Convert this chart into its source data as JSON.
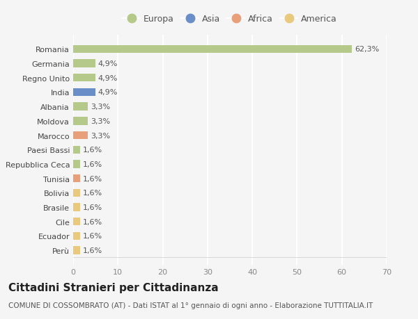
{
  "categories": [
    "Perù",
    "Ecuador",
    "Cile",
    "Brasile",
    "Bolivia",
    "Tunisia",
    "Repubblica Ceca",
    "Paesi Bassi",
    "Marocco",
    "Moldova",
    "Albania",
    "India",
    "Regno Unito",
    "Germania",
    "Romania"
  ],
  "values": [
    1.6,
    1.6,
    1.6,
    1.6,
    1.6,
    1.6,
    1.6,
    1.6,
    3.3,
    3.3,
    3.3,
    4.9,
    4.9,
    4.9,
    62.3
  ],
  "labels": [
    "1,6%",
    "1,6%",
    "1,6%",
    "1,6%",
    "1,6%",
    "1,6%",
    "1,6%",
    "1,6%",
    "3,3%",
    "3,3%",
    "3,3%",
    "4,9%",
    "4,9%",
    "4,9%",
    "62,3%"
  ],
  "colors": [
    "#e8c97e",
    "#e8c97e",
    "#e8c97e",
    "#e8c97e",
    "#e8c97e",
    "#e8a07a",
    "#b5c98a",
    "#b5c98a",
    "#e8a07a",
    "#b5c98a",
    "#b5c98a",
    "#6a8fc8",
    "#b5c98a",
    "#b5c98a",
    "#b5c98a"
  ],
  "legend": [
    {
      "label": "Europa",
      "color": "#b5c98a"
    },
    {
      "label": "Asia",
      "color": "#6a8fc8"
    },
    {
      "label": "Africa",
      "color": "#e8a07a"
    },
    {
      "label": "America",
      "color": "#e8c97e"
    }
  ],
  "xlim": [
    0,
    70
  ],
  "xticks": [
    0,
    10,
    20,
    30,
    40,
    50,
    60,
    70
  ],
  "title": "Cittadini Stranieri per Cittadinanza",
  "subtitle": "COMUNE DI COSSOMBRATO (AT) - Dati ISTAT al 1° gennaio di ogni anno - Elaborazione TUTTITALIA.IT",
  "bg_color": "#f5f5f5",
  "grid_color": "#ffffff",
  "bar_height": 0.55,
  "label_fontsize": 8,
  "tick_fontsize": 8,
  "legend_fontsize": 9,
  "title_fontsize": 11,
  "subtitle_fontsize": 7.5
}
